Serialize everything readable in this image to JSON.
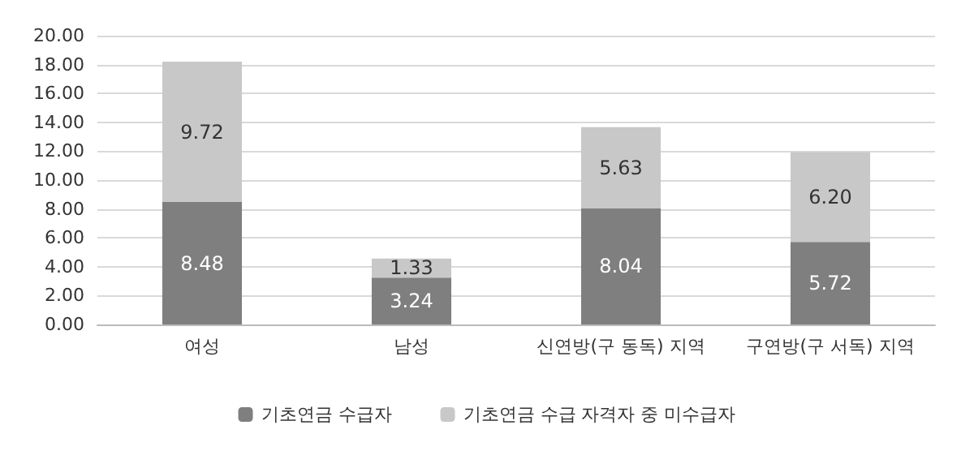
{
  "chart_data": {
    "type": "bar",
    "stacked": true,
    "categories": [
      "여성",
      "남성",
      "신연방(구 동독) 지역",
      "구연방(구 서독) 지역"
    ],
    "series": [
      {
        "name": "기초연금 수급자",
        "color": "#7f7f7f",
        "values": [
          8.48,
          3.24,
          8.04,
          5.72
        ],
        "value_labels": [
          "8.48",
          "3.24",
          "8.04",
          "5.72"
        ]
      },
      {
        "name": "기초연금 수급 자격자 중 미수급자",
        "color": "#c8c8c8",
        "values": [
          9.72,
          1.33,
          5.63,
          6.2
        ],
        "value_labels": [
          "9.72",
          "1.33",
          "5.63",
          "6.20"
        ]
      }
    ],
    "ylim": [
      0,
      20
    ],
    "yticks": [
      {
        "value": 0,
        "label": "0.00"
      },
      {
        "value": 2,
        "label": "2.00"
      },
      {
        "value": 4,
        "label": "4.00"
      },
      {
        "value": 6,
        "label": "6.00"
      },
      {
        "value": 8,
        "label": "8.00"
      },
      {
        "value": 10,
        "label": "10.00"
      },
      {
        "value": 12,
        "label": "12.00"
      },
      {
        "value": 14,
        "label": "14.00"
      },
      {
        "value": 16,
        "label": "16.00"
      },
      {
        "value": 18,
        "label": "18.00"
      },
      {
        "value": 20,
        "label": "20.00"
      }
    ],
    "grid": true,
    "legend": "bottom"
  }
}
